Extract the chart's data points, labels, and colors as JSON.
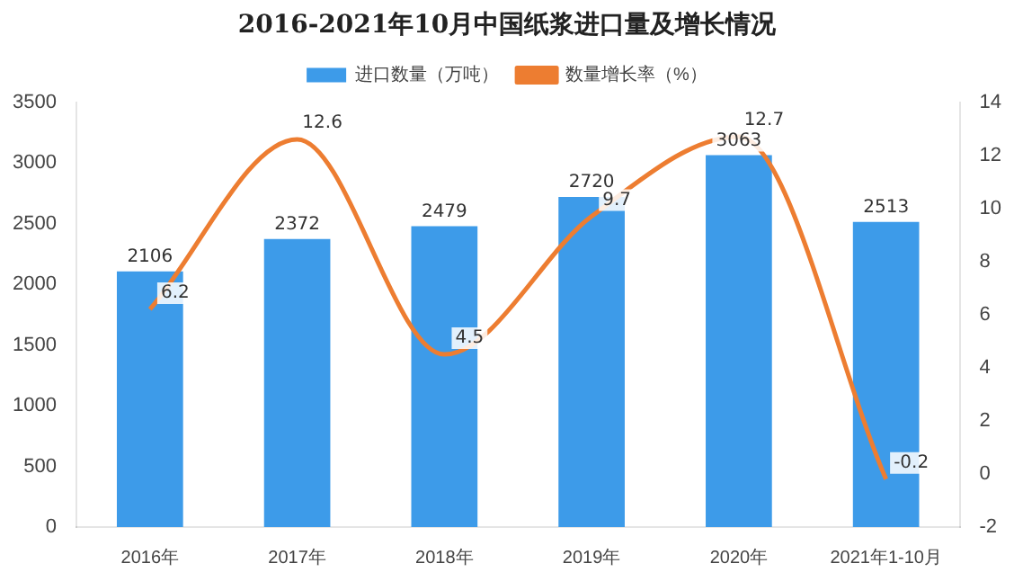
{
  "chart_data": {
    "type": "bar",
    "title": "2016-2021年10月中国纸浆进口量及增长情况",
    "categories": [
      "2016年",
      "2017年",
      "2018年",
      "2019年",
      "2020年",
      "2021年1-10月"
    ],
    "series": [
      {
        "name": "进口数量（万吨）",
        "color": "#3d9be9",
        "values": [
          2106,
          2372,
          2479,
          2720,
          3063,
          2513
        ]
      },
      {
        "name": "数量增长率（%）",
        "type": "line",
        "axis": "y2",
        "color": "#ed7d31",
        "values": [
          6.2,
          12.6,
          4.5,
          9.7,
          12.7,
          -0.2
        ]
      }
    ],
    "ylim": [
      0,
      3500
    ],
    "yticks": [
      0,
      500,
      1000,
      1500,
      2000,
      2500,
      3000,
      3500
    ],
    "y2lim": [
      -2,
      14
    ],
    "y2ticks": [
      -2,
      0,
      2,
      4,
      6,
      8,
      10,
      12,
      14
    ],
    "legend": "top",
    "marker": "none",
    "data_labels": true
  }
}
